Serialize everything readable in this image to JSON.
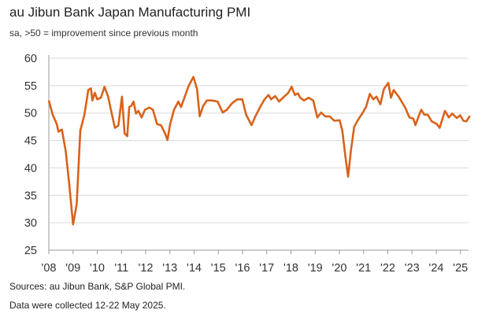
{
  "header": {
    "title": "au Jibun Bank Japan Manufacturing PMI",
    "subtitle": "sa, >50 = improvement since previous month"
  },
  "footer": {
    "sources": "Sources: au Jibun Bank, S&P Global PMI.",
    "collected": "Data were collected 12-22 May 2025."
  },
  "chart_data": {
    "type": "line",
    "title": "au Jibun Bank Japan Manufacturing PMI",
    "subtitle": "sa, >50 = improvement since previous month",
    "xlabel": "",
    "ylabel": "",
    "ylim": [
      25,
      60
    ],
    "xlim": [
      2008,
      2025.4
    ],
    "yticks": [
      "25",
      "30",
      "35",
      "40",
      "45",
      "50",
      "55",
      "60"
    ],
    "xticks": [
      "'08",
      "'09",
      "'10",
      "'11",
      "'12",
      "'13",
      "'14",
      "'15",
      "'16",
      "'17",
      "'18",
      "'19",
      "'20",
      "'21",
      "'22",
      "'23",
      "'24",
      "'25"
    ],
    "grid": "horizontal",
    "legend": "none",
    "line_color": "#d9621a",
    "series": [
      {
        "x": [
          2008.0,
          2008.16,
          2008.33,
          2008.4,
          2008.54,
          2008.7,
          2008.84,
          2009.0,
          2009.15,
          2009.3,
          2009.47,
          2009.63,
          2009.74,
          2009.8,
          2009.9,
          2010.0,
          2010.15,
          2010.3,
          2010.45,
          2010.6,
          2010.73,
          2010.87,
          2011.02,
          2011.13,
          2011.24,
          2011.32,
          2011.4,
          2011.5,
          2011.6,
          2011.7,
          2011.83,
          2011.97,
          2012.15,
          2012.3,
          2012.47,
          2012.63,
          2012.8,
          2012.9,
          2013.0,
          2013.17,
          2013.35,
          2013.46,
          2013.6,
          2013.77,
          2013.97,
          2014.12,
          2014.23,
          2014.37,
          2014.53,
          2014.75,
          2014.97,
          2015.18,
          2015.35,
          2015.57,
          2015.78,
          2015.99,
          2016.15,
          2016.37,
          2016.53,
          2016.75,
          2016.91,
          2017.07,
          2017.18,
          2017.35,
          2017.51,
          2017.67,
          2017.89,
          2018.03,
          2018.16,
          2018.29,
          2018.38,
          2018.54,
          2018.73,
          2018.92,
          2019.09,
          2019.25,
          2019.41,
          2019.6,
          2019.79,
          2020.01,
          2020.12,
          2020.25,
          2020.36,
          2020.47,
          2020.61,
          2020.79,
          2020.97,
          2021.1,
          2021.26,
          2021.4,
          2021.53,
          2021.69,
          2021.84,
          2022.02,
          2022.13,
          2022.24,
          2022.45,
          2022.73,
          2022.89,
          2023.05,
          2023.14,
          2023.27,
          2023.38,
          2023.51,
          2023.65,
          2023.81,
          2024.03,
          2024.14,
          2024.36,
          2024.52,
          2024.66,
          2024.85,
          2024.99,
          2025.12,
          2025.25,
          2025.39
        ],
        "y": [
          52.3,
          49.7,
          48.0,
          46.6,
          47.0,
          43.0,
          37.2,
          29.7,
          33.4,
          46.8,
          49.7,
          54.2,
          54.5,
          52.3,
          53.7,
          52.5,
          52.8,
          54.8,
          53.0,
          49.9,
          47.3,
          47.7,
          53.0,
          46.3,
          45.8,
          51.1,
          51.3,
          52.1,
          49.9,
          50.4,
          49.2,
          50.6,
          51.0,
          50.6,
          48.0,
          47.8,
          46.3,
          45.1,
          47.8,
          50.6,
          52.1,
          51.1,
          52.8,
          54.9,
          56.6,
          54.4,
          49.4,
          51.3,
          52.3,
          52.3,
          52.1,
          50.1,
          50.6,
          51.8,
          52.5,
          52.5,
          49.7,
          47.8,
          49.4,
          51.3,
          52.5,
          53.3,
          52.5,
          53.1,
          52.1,
          52.8,
          53.7,
          54.8,
          53.3,
          53.6,
          52.8,
          52.3,
          52.8,
          52.3,
          49.2,
          50.1,
          49.4,
          49.4,
          48.6,
          48.7,
          46.8,
          42.0,
          38.4,
          43.0,
          47.5,
          48.9,
          50.1,
          51.1,
          53.5,
          52.5,
          53.0,
          51.6,
          54.4,
          55.5,
          52.8,
          54.2,
          53.0,
          50.9,
          49.2,
          49.0,
          47.8,
          49.4,
          50.6,
          49.7,
          49.7,
          48.5,
          48.0,
          47.3,
          50.4,
          49.2,
          49.9,
          49.1,
          49.6,
          48.6,
          48.5,
          49.5
        ]
      }
    ]
  }
}
